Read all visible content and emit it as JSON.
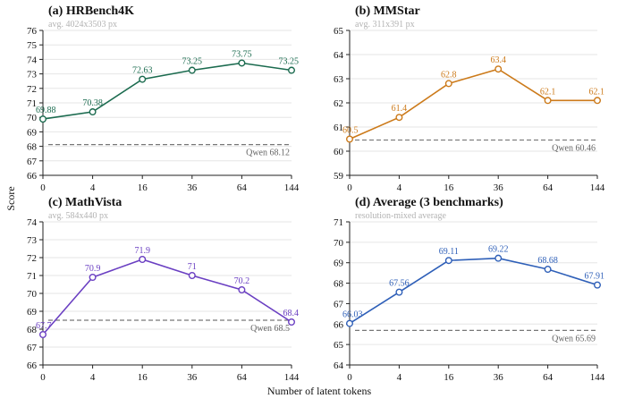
{
  "figure": {
    "ylabel": "Score",
    "xlabel": "Number of latent tokens"
  },
  "chart_data": [
    {
      "type": "line",
      "title": "(a) HRBench4K",
      "subtitle": "avg. 4024x3503 px",
      "x": [
        "0",
        "4",
        "16",
        "36",
        "64",
        "144"
      ],
      "values": [
        69.88,
        70.38,
        72.63,
        73.25,
        73.75,
        73.25
      ],
      "value_labels": [
        "69.88",
        "70.38",
        "72.63",
        "73.25",
        "73.75",
        "73.25"
      ],
      "yticks": [
        "66",
        "67",
        "68",
        "69",
        "70",
        "71",
        "72",
        "73",
        "74",
        "75",
        "76"
      ],
      "ylim": [
        66,
        76
      ],
      "reference": {
        "label": "Qwen 68.12",
        "value": 68.12
      },
      "color": "#1b6b4f",
      "grid": true
    },
    {
      "type": "line",
      "title": "(b) MMStar",
      "subtitle": "avg. 311x391 px",
      "x": [
        "0",
        "4",
        "16",
        "36",
        "64",
        "144"
      ],
      "values": [
        60.5,
        61.4,
        62.8,
        63.4,
        62.1,
        62.1
      ],
      "value_labels": [
        "60.5",
        "61.4",
        "62.8",
        "63.4",
        "62.1",
        "62.1"
      ],
      "yticks": [
        "59",
        "60",
        "61",
        "62",
        "63",
        "64",
        "65"
      ],
      "ylim": [
        59,
        65
      ],
      "reference": {
        "label": "Qwen 60.46",
        "value": 60.46
      },
      "color": "#cc7a1a",
      "grid": true
    },
    {
      "type": "line",
      "title": "(c) MathVista",
      "subtitle": "avg. 584x440 px",
      "x": [
        "0",
        "4",
        "16",
        "36",
        "64",
        "144"
      ],
      "values": [
        67.7,
        70.9,
        71.9,
        71.0,
        70.2,
        68.4
      ],
      "value_labels": [
        "67.7",
        "70.9",
        "71.9",
        "71",
        "70.2",
        "68.4"
      ],
      "yticks": [
        "66",
        "67",
        "68",
        "69",
        "70",
        "71",
        "72",
        "73",
        "74"
      ],
      "ylim": [
        66,
        74
      ],
      "reference": {
        "label": "Qwen 68.5",
        "value": 68.5
      },
      "color": "#6a3fc2",
      "grid": true
    },
    {
      "type": "line",
      "title": "(d) Average (3 benchmarks)",
      "subtitle": "resolution-mixed average",
      "x": [
        "0",
        "4",
        "16",
        "36",
        "64",
        "144"
      ],
      "values": [
        66.03,
        67.56,
        69.11,
        69.22,
        68.68,
        67.91
      ],
      "value_labels": [
        "66.03",
        "67.56",
        "69.11",
        "69.22",
        "68.68",
        "67.91"
      ],
      "yticks": [
        "64",
        "65",
        "66",
        "67",
        "68",
        "69",
        "70",
        "71"
      ],
      "ylim": [
        64,
        71
      ],
      "reference": {
        "label": "Qwen 65.69",
        "value": 65.69
      },
      "color": "#2e5fb8",
      "grid": true
    }
  ]
}
